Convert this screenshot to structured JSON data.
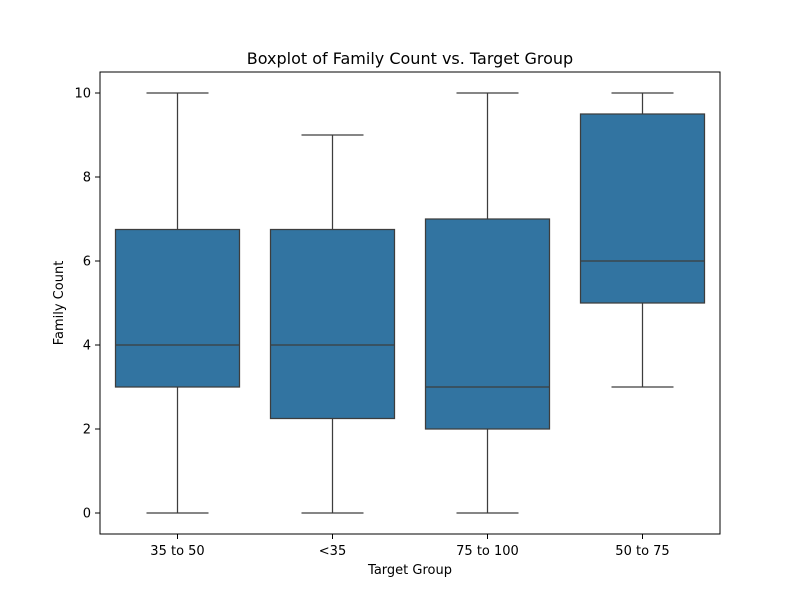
{
  "chart_data": {
    "type": "box",
    "title": "Boxplot of Family Count vs. Target Group",
    "xlabel": "Target Group",
    "ylabel": "Family Count",
    "ylim": [
      -0.5,
      10.5
    ],
    "yticks": [
      0,
      2,
      4,
      6,
      8,
      10
    ],
    "grid": false,
    "box_color": "#3274a1",
    "line_color": "#3d3d3d",
    "categories": [
      "35 to 50",
      "<35",
      "75 to 100",
      "50 to 75"
    ],
    "boxes": [
      {
        "category": "35 to 50",
        "whisker_low": 0,
        "q1": 3,
        "median": 4,
        "q3": 6.75,
        "whisker_high": 10
      },
      {
        "category": "<35",
        "whisker_low": 0,
        "q1": 2.25,
        "median": 4,
        "q3": 6.75,
        "whisker_high": 9
      },
      {
        "category": "75 to 100",
        "whisker_low": 0,
        "q1": 2,
        "median": 3,
        "q3": 7,
        "whisker_high": 10
      },
      {
        "category": "50 to 75",
        "whisker_low": 3,
        "q1": 5,
        "median": 6,
        "q3": 9.5,
        "whisker_high": 10
      }
    ]
  }
}
